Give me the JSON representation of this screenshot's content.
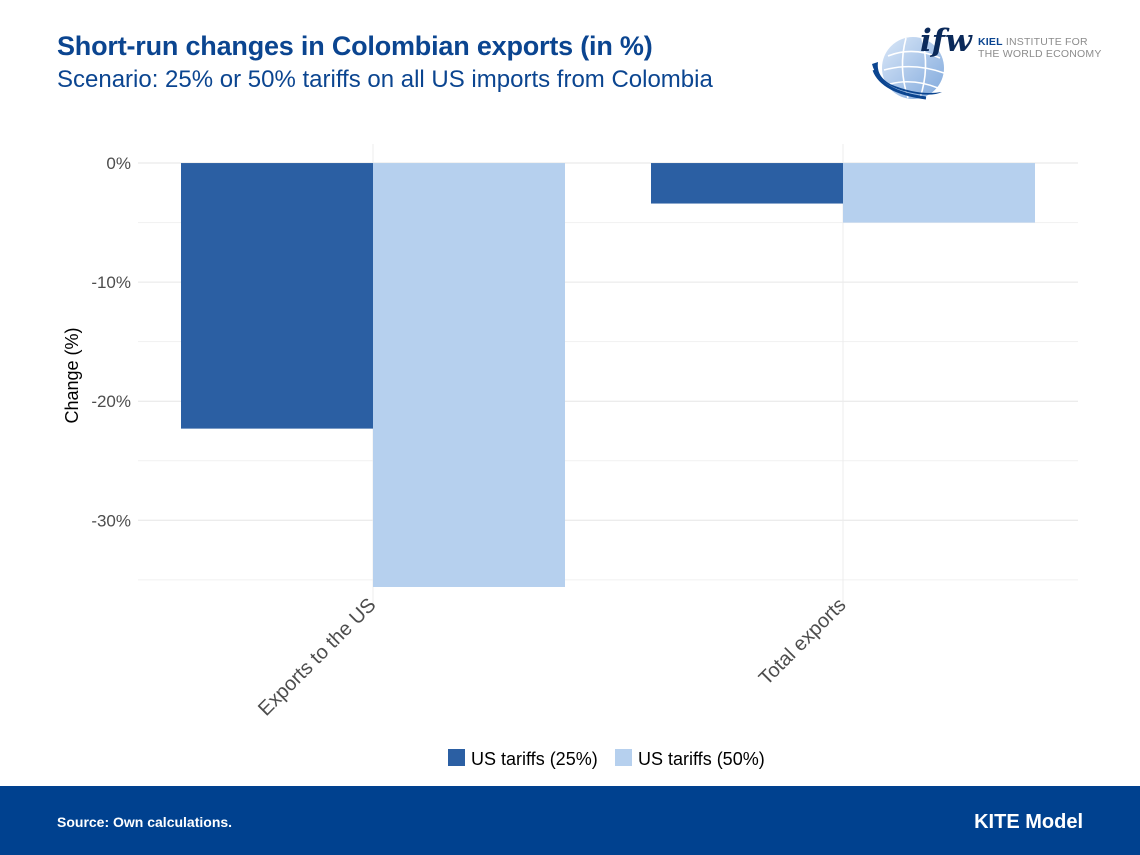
{
  "header": {
    "title": "Short-run changes in Colombian exports (in %)",
    "subtitle": "Scenario: 25% or 50% tariffs on all US imports from Colombia",
    "logo_wordmark": "ifw",
    "logo_line1_bold": "KIEL",
    "logo_line1_rest": "INSTITUTE FOR",
    "logo_line2": "THE WORLD ECONOMY"
  },
  "chart_data": {
    "type": "bar",
    "categories": [
      "Exports to the US",
      "Total exports"
    ],
    "series": [
      {
        "name": "US tariffs (25%)",
        "color": "#2b5fa3",
        "values": [
          -22.3,
          -3.4
        ]
      },
      {
        "name": "US tariffs (50%)",
        "color": "#b6d0ee",
        "values": [
          -35.6,
          -5.0
        ]
      }
    ],
    "ylabel": "Change (%)",
    "ylim": [
      -35.6,
      1.6
    ],
    "yticks": [
      0,
      -10,
      -20,
      -30
    ],
    "ytick_labels": [
      "0%",
      "-10%",
      "-20%",
      "-30%"
    ],
    "grid": true,
    "legend": "bottom"
  },
  "footer": {
    "source": "Source: Own calculations.",
    "model": "KITE Model"
  },
  "colors": {
    "title": "#0b4590",
    "footer_bg": "#00418f"
  }
}
